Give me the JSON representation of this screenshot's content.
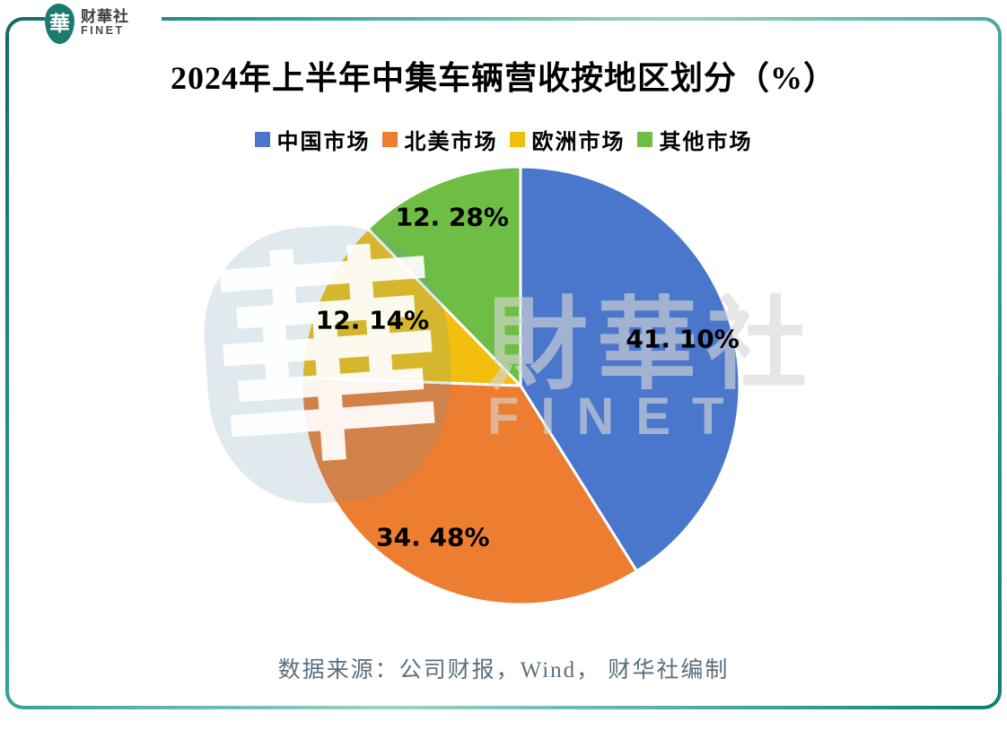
{
  "brand": {
    "logo_glyph": "華",
    "logo_name": "财華社",
    "logo_subname": "FINET"
  },
  "chart": {
    "source_note": "数据来源：公司财报，Wind， 财华社编制"
  },
  "watermark": {
    "logo_glyph": "華",
    "text_main": "財華社",
    "text_sub": "FINET"
  },
  "chart_data": {
    "type": "pie",
    "title": "2024年上半年中集车辆营收按地区划分（%）",
    "categories": [
      "中国市场",
      "北美市场",
      "欧洲市场",
      "其他市场"
    ],
    "values": [
      41.1,
      34.48,
      12.14,
      12.28
    ],
    "value_labels": [
      "41. 10%",
      "34. 48%",
      "12. 14%",
      "12. 28%"
    ],
    "colors": [
      "#4A77CB",
      "#ED7D31",
      "#F3BF0E",
      "#6EBE45"
    ],
    "unit": "%",
    "start_angle_deg": 0,
    "direction": "clockwise",
    "legend_position": "top",
    "frame_color": "#0E8A7F",
    "source_text_color": "#5A6F7E"
  }
}
